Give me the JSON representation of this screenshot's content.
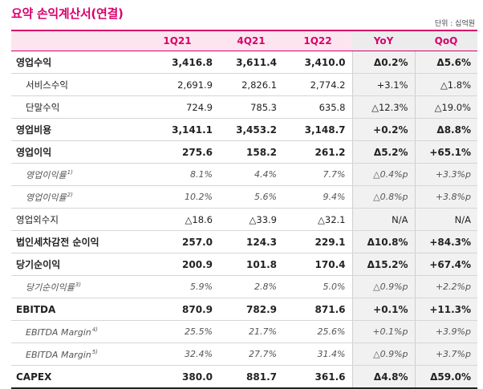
{
  "title": "요약 손익계산서(연결)",
  "unit_label": "단위 : 십억원",
  "columns": [
    "1Q21",
    "4Q21",
    "1Q22",
    "YoY",
    "QoQ"
  ],
  "rows": [
    {
      "label": "영업수익",
      "footnote": "",
      "style": "bold sec",
      "values": [
        "3,416.8",
        "3,611.4",
        "3,410.0",
        "Δ0.2%",
        "Δ5.6%"
      ]
    },
    {
      "label": "서비스수익",
      "footnote": "",
      "style": "sub",
      "values": [
        "2,691.9",
        "2,826.1",
        "2,774.2",
        "+3.1%",
        "△1.8%"
      ]
    },
    {
      "label": "단말수익",
      "footnote": "",
      "style": "sub",
      "values": [
        "724.9",
        "785.3",
        "635.8",
        "△12.3%",
        "△19.0%"
      ]
    },
    {
      "label": "영업비용",
      "footnote": "",
      "style": "bold sec",
      "values": [
        "3,141.1",
        "3,453.2",
        "3,148.7",
        "+0.2%",
        "Δ8.8%"
      ]
    },
    {
      "label": "영업이익",
      "footnote": "",
      "style": "bold sec",
      "values": [
        "275.6",
        "158.2",
        "261.2",
        "Δ5.2%",
        "+65.1%"
      ]
    },
    {
      "label": "영업이익률",
      "footnote": "1)",
      "style": "ital",
      "values": [
        "8.1%",
        "4.4%",
        "7.7%",
        "△0.4%p",
        "+3.3%p"
      ]
    },
    {
      "label": "영업이익률",
      "footnote": "2)",
      "style": "ital",
      "values": [
        "10.2%",
        "5.6%",
        "9.4%",
        "△0.8%p",
        "+3.8%p"
      ]
    },
    {
      "label": "영업외수지",
      "footnote": "",
      "style": "sec",
      "values": [
        "△18.6",
        "△33.9",
        "△32.1",
        "N/A",
        "N/A"
      ]
    },
    {
      "label": "법인세차감전 순이익",
      "footnote": "",
      "style": "bold sec",
      "values": [
        "257.0",
        "124.3",
        "229.1",
        "Δ10.8%",
        "+84.3%"
      ]
    },
    {
      "label": "당기순이익",
      "footnote": "",
      "style": "bold sec",
      "values": [
        "200.9",
        "101.8",
        "170.4",
        "Δ15.2%",
        "+67.4%"
      ]
    },
    {
      "label": "당기순이익률",
      "footnote": "3)",
      "style": "ital",
      "values": [
        "5.9%",
        "2.8%",
        "5.0%",
        "△0.9%p",
        "+2.2%p"
      ]
    },
    {
      "label": "EBITDA",
      "footnote": "",
      "style": "bold sec",
      "values": [
        "870.9",
        "782.9",
        "871.6",
        "+0.1%",
        "+11.3%"
      ]
    },
    {
      "label": "EBITDA Margin",
      "footnote": "4)",
      "style": "ital",
      "values": [
        "25.5%",
        "21.7%",
        "25.6%",
        "+0.1%p",
        "+3.9%p"
      ]
    },
    {
      "label": "EBITDA Margin",
      "footnote": "5)",
      "style": "ital",
      "values": [
        "32.4%",
        "27.7%",
        "31.4%",
        "△0.9%p",
        "+3.7%p"
      ]
    },
    {
      "label": "CAPEX",
      "footnote": "",
      "style": "bold sec last",
      "values": [
        "380.0",
        "881.7",
        "361.6",
        "Δ4.8%",
        "Δ59.0%"
      ]
    }
  ]
}
